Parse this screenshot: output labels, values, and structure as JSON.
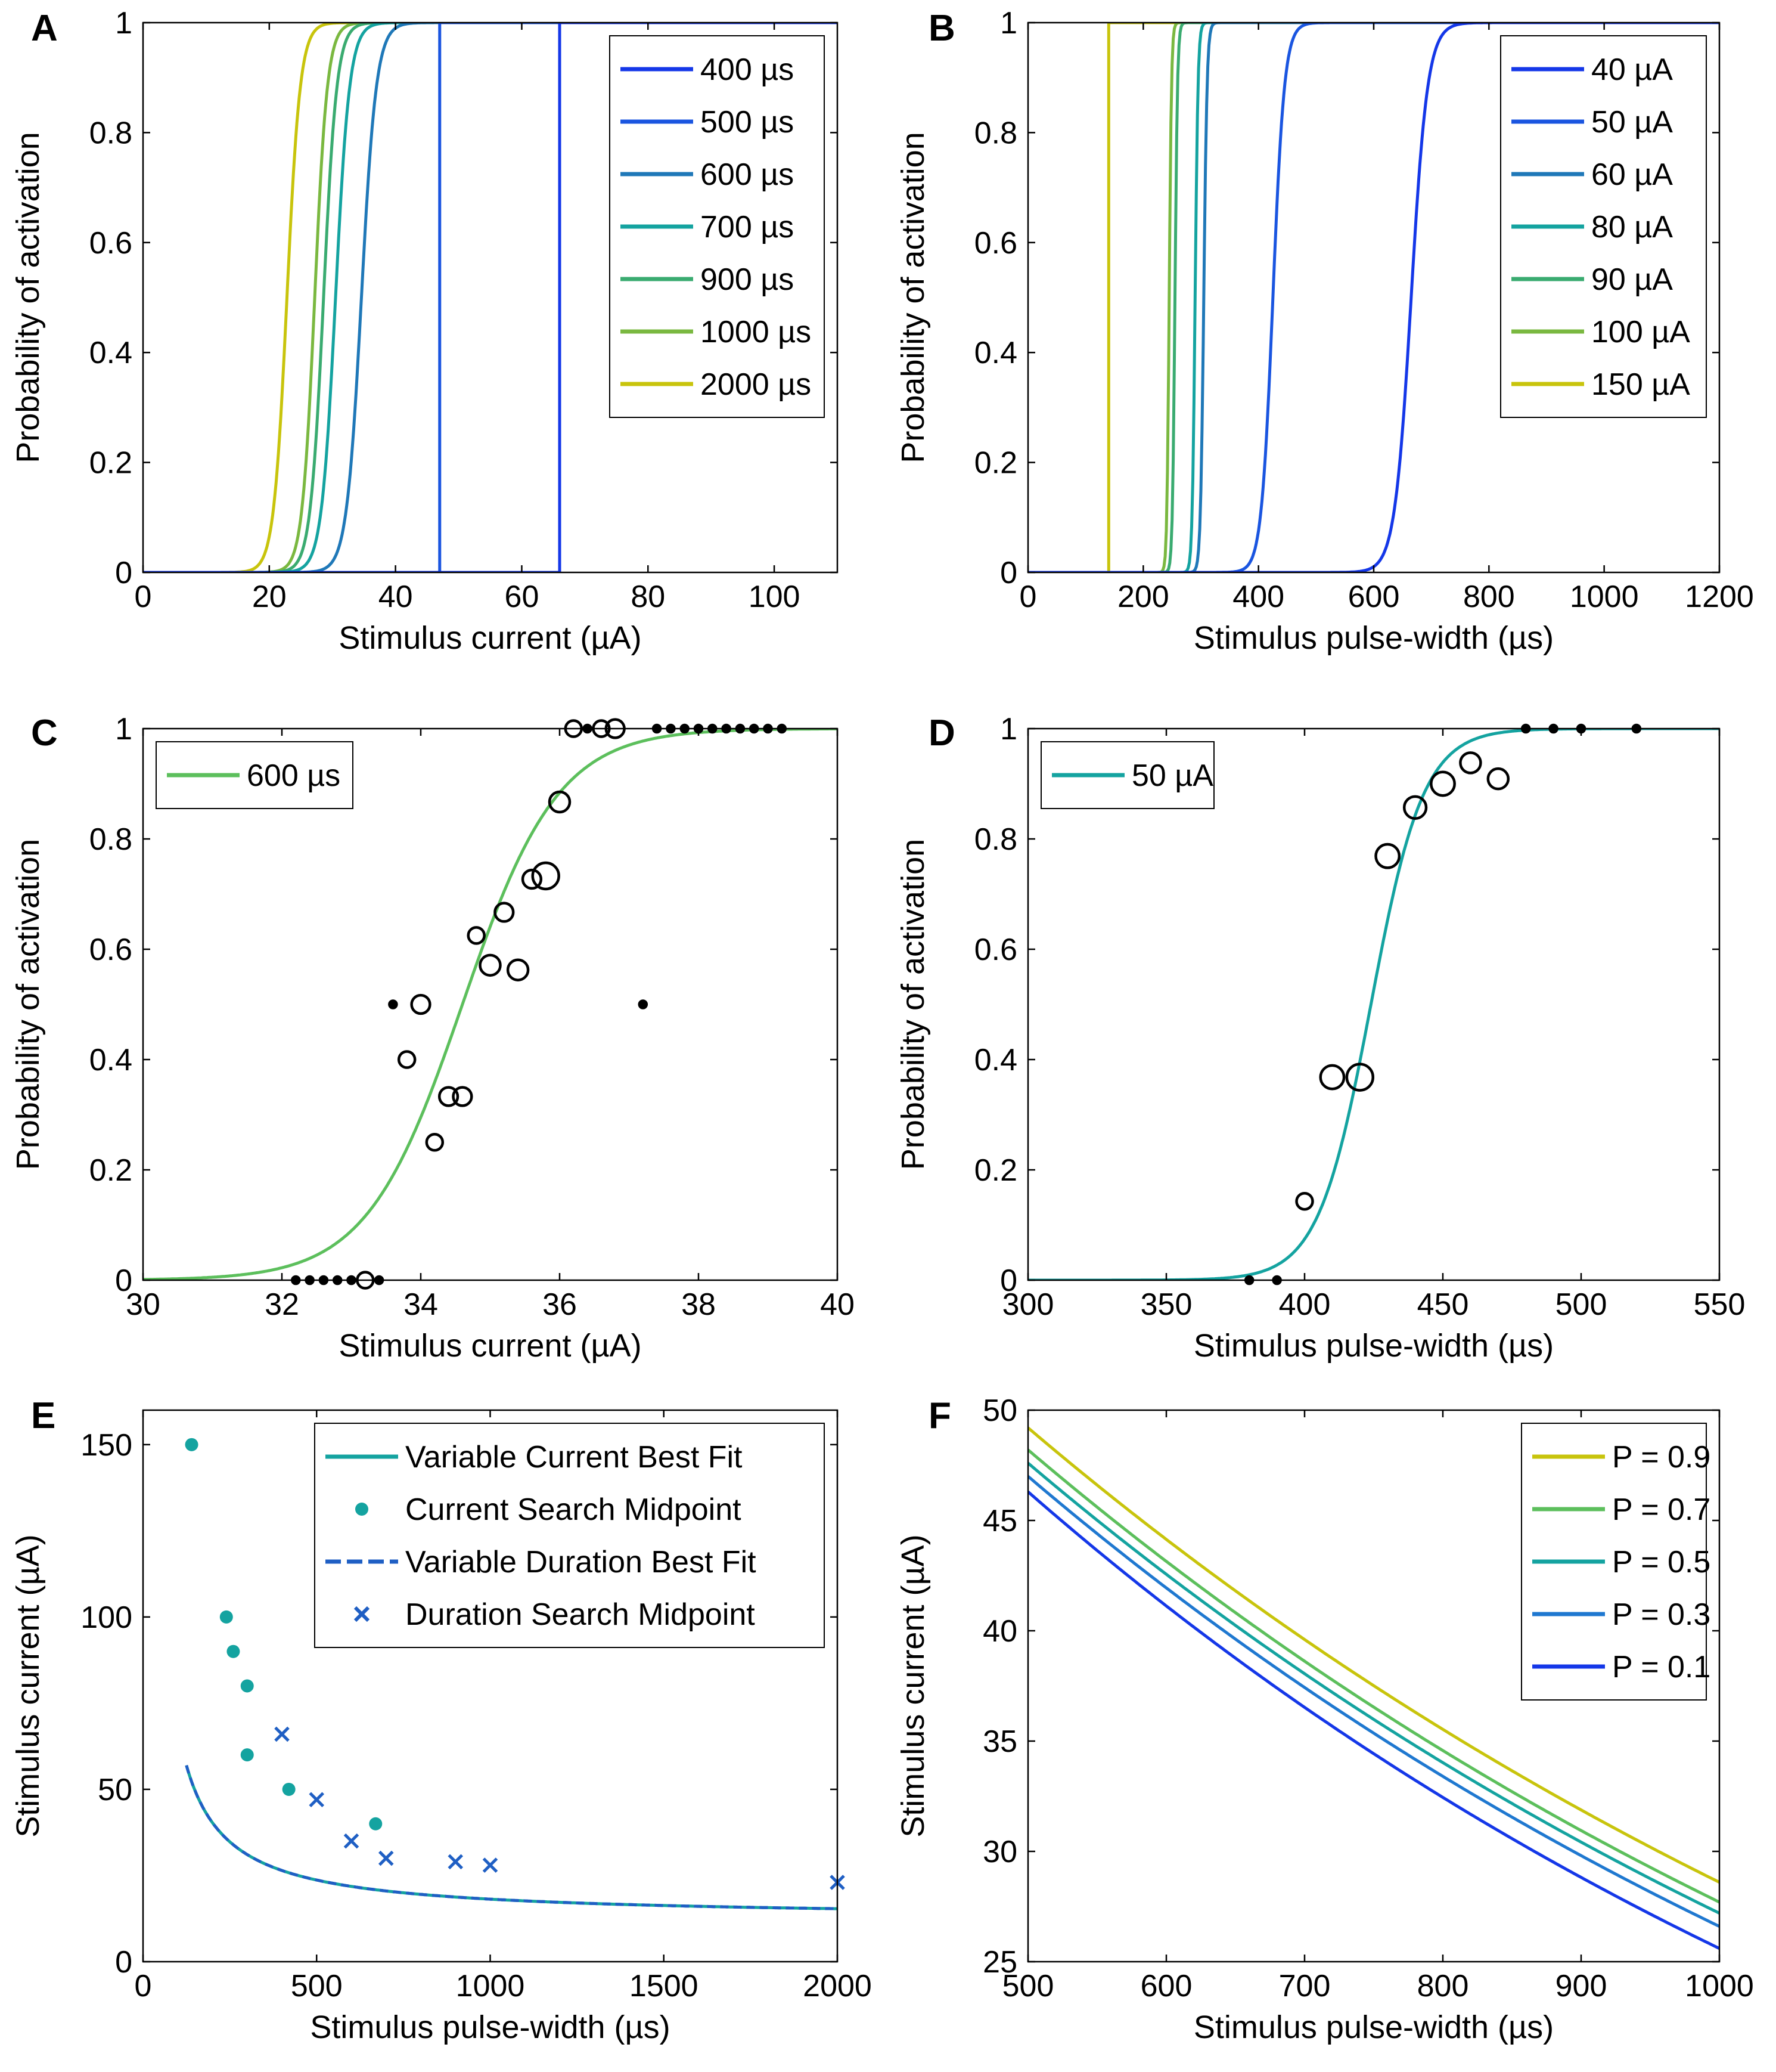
{
  "chart_data": [
    {
      "id": "A",
      "type": "line",
      "panel_label": "A",
      "xlabel": "Stimulus current (µA)",
      "ylabel": "Probability of activation",
      "xlim": [
        0,
        110
      ],
      "ylim": [
        0,
        1
      ],
      "xticks": [
        0,
        20,
        40,
        60,
        80,
        100
      ],
      "yticks": [
        0,
        0.2,
        0.4,
        0.6,
        0.8,
        1
      ],
      "legend_position": "top-right",
      "series": [
        {
          "name": "400 µs",
          "color": "#1437e8",
          "kind": "step",
          "threshold": 66
        },
        {
          "name": "500 µs",
          "color": "#1a55e0",
          "kind": "step",
          "threshold": 47
        },
        {
          "name": "600 µs",
          "color": "#1f78b8",
          "kind": "sigmoid",
          "midpoint": 34.6,
          "slope": 0.85
        },
        {
          "name": "700 µs",
          "color": "#14a3a0",
          "kind": "sigmoid",
          "midpoint": 30.5,
          "slope": 0.9
        },
        {
          "name": "900 µs",
          "color": "#3aab70",
          "kind": "sigmoid",
          "midpoint": 28.6,
          "slope": 0.95
        },
        {
          "name": "1000 µs",
          "color": "#7ab840",
          "kind": "sigmoid",
          "midpoint": 27.2,
          "slope": 1.0
        },
        {
          "name": "2000 µs",
          "color": "#c8c40c",
          "kind": "sigmoid",
          "midpoint": 22.8,
          "slope": 0.95
        }
      ]
    },
    {
      "id": "B",
      "type": "line",
      "panel_label": "B",
      "xlabel": "Stimulus pulse-width (µs)",
      "ylabel": "Probability of activation",
      "xlim": [
        0,
        1200
      ],
      "ylim": [
        0,
        1
      ],
      "xticks": [
        0,
        200,
        400,
        600,
        800,
        1000,
        1200
      ],
      "yticks": [
        0,
        0.2,
        0.4,
        0.6,
        0.8,
        1
      ],
      "legend_position": "top-right",
      "series": [
        {
          "name": "40 µA",
          "color": "#1437e8",
          "kind": "sigmoid",
          "midpoint": 665,
          "slope": 0.07
        },
        {
          "name": "50 µA",
          "color": "#1a55e0",
          "kind": "sigmoid",
          "midpoint": 425,
          "slope": 0.1
        },
        {
          "name": "60 µA",
          "color": "#1f78b8",
          "kind": "sigmoid",
          "midpoint": 305,
          "slope": 0.35
        },
        {
          "name": "80 µA",
          "color": "#14a3a0",
          "kind": "sigmoid",
          "midpoint": 290,
          "slope": 0.4
        },
        {
          "name": "90 µA",
          "color": "#3aab70",
          "kind": "sigmoid",
          "midpoint": 255,
          "slope": 0.45
        },
        {
          "name": "100 µA",
          "color": "#7ab840",
          "kind": "sigmoid",
          "midpoint": 245,
          "slope": 0.5
        },
        {
          "name": "150 µA",
          "color": "#c8c40c",
          "kind": "step",
          "threshold": 140
        }
      ]
    },
    {
      "id": "C",
      "type": "scatter",
      "panel_label": "C",
      "xlabel": "Stimulus current (µA)",
      "ylabel": "Probability of activation",
      "xlim": [
        30,
        40
      ],
      "ylim": [
        0,
        1
      ],
      "xticks": [
        30,
        32,
        34,
        36,
        38,
        40
      ],
      "yticks": [
        0,
        0.2,
        0.4,
        0.6,
        0.8,
        1
      ],
      "legend_position": "top-left",
      "fit": {
        "name": "600 µs",
        "color": "#5cbf5c",
        "midpoint": 34.6,
        "slope": 1.45
      },
      "points": [
        {
          "x": 32.2,
          "y": 0,
          "n": 1
        },
        {
          "x": 32.4,
          "y": 0,
          "n": 1
        },
        {
          "x": 32.6,
          "y": 0,
          "n": 1
        },
        {
          "x": 32.8,
          "y": 0,
          "n": 1
        },
        {
          "x": 33.0,
          "y": 0,
          "n": 1
        },
        {
          "x": 33.2,
          "y": 0,
          "n": 2
        },
        {
          "x": 33.4,
          "y": 0,
          "n": 1
        },
        {
          "x": 33.6,
          "y": 0.5,
          "n": 1
        },
        {
          "x": 33.8,
          "y": 0.4,
          "n": 2
        },
        {
          "x": 34.0,
          "y": 0.5,
          "n": 3
        },
        {
          "x": 34.2,
          "y": 0.25,
          "n": 2
        },
        {
          "x": 34.4,
          "y": 0.333,
          "n": 3
        },
        {
          "x": 34.6,
          "y": 0.333,
          "n": 3
        },
        {
          "x": 34.8,
          "y": 0.625,
          "n": 2
        },
        {
          "x": 35.0,
          "y": 0.571,
          "n": 4
        },
        {
          "x": 35.2,
          "y": 0.667,
          "n": 3
        },
        {
          "x": 35.4,
          "y": 0.5625,
          "n": 4
        },
        {
          "x": 35.6,
          "y": 0.727,
          "n": 3
        },
        {
          "x": 35.8,
          "y": 0.733,
          "n": 8
        },
        {
          "x": 36.0,
          "y": 0.867,
          "n": 4
        },
        {
          "x": 36.2,
          "y": 1,
          "n": 2
        },
        {
          "x": 36.4,
          "y": 1,
          "n": 1
        },
        {
          "x": 36.6,
          "y": 1,
          "n": 2
        },
        {
          "x": 36.8,
          "y": 1,
          "n": 3
        },
        {
          "x": 37.2,
          "y": 0.5,
          "n": 1
        },
        {
          "x": 37.4,
          "y": 1,
          "n": 1
        },
        {
          "x": 37.6,
          "y": 1,
          "n": 1
        },
        {
          "x": 37.8,
          "y": 1,
          "n": 1
        },
        {
          "x": 38.0,
          "y": 1,
          "n": 1
        },
        {
          "x": 38.2,
          "y": 1,
          "n": 1
        },
        {
          "x": 38.4,
          "y": 1,
          "n": 1
        },
        {
          "x": 38.6,
          "y": 1,
          "n": 1
        },
        {
          "x": 38.8,
          "y": 1,
          "n": 1
        },
        {
          "x": 39.0,
          "y": 1,
          "n": 1
        },
        {
          "x": 39.2,
          "y": 1,
          "n": 1
        }
      ]
    },
    {
      "id": "D",
      "type": "scatter",
      "panel_label": "D",
      "xlabel": "Stimulus pulse-width (µs)",
      "ylabel": "Probability of activation",
      "xlim": [
        300,
        550
      ],
      "ylim": [
        0,
        1
      ],
      "xticks": [
        300,
        350,
        400,
        450,
        500,
        550
      ],
      "yticks": [
        0,
        0.2,
        0.4,
        0.6,
        0.8,
        1
      ],
      "legend_position": "top-left",
      "fit": {
        "name": "50 µA",
        "color": "#14a3a0",
        "midpoint": 424,
        "slope": 0.105
      },
      "points": [
        {
          "x": 380,
          "y": 0,
          "n": 1
        },
        {
          "x": 390,
          "y": 0,
          "n": 1
        },
        {
          "x": 400,
          "y": 0.143,
          "n": 2
        },
        {
          "x": 410,
          "y": 0.368,
          "n": 6
        },
        {
          "x": 420,
          "y": 0.368,
          "n": 8
        },
        {
          "x": 430,
          "y": 0.769,
          "n": 6
        },
        {
          "x": 440,
          "y": 0.857,
          "n": 5
        },
        {
          "x": 450,
          "y": 0.9,
          "n": 6
        },
        {
          "x": 460,
          "y": 0.938,
          "n": 4
        },
        {
          "x": 470,
          "y": 0.909,
          "n": 4
        },
        {
          "x": 480,
          "y": 1,
          "n": 1
        },
        {
          "x": 490,
          "y": 1,
          "n": 1
        },
        {
          "x": 500,
          "y": 1,
          "n": 1
        },
        {
          "x": 520,
          "y": 1,
          "n": 1
        }
      ]
    },
    {
      "id": "E",
      "type": "line",
      "panel_label": "E",
      "xlabel": "Stimulus pulse-width (µs)",
      "ylabel": "Stimulus current (µA)",
      "xlim": [
        0,
        2000
      ],
      "ylim": [
        0,
        160
      ],
      "xticks": [
        0,
        500,
        1000,
        1500,
        2000
      ],
      "yticks": [
        0,
        50,
        100,
        150
      ],
      "legend_position": "top-right",
      "series": [
        {
          "name": "Variable Current Best Fit",
          "color": "#14a3a0",
          "style": "solid",
          "rheobase": 12.6,
          "chronaxie": 440
        },
        {
          "name": "Current Search Midpoint",
          "color": "#14a3a0",
          "style": "dot",
          "points": [
            [
              140,
              150
            ],
            [
              240,
              100
            ],
            [
              260,
              90
            ],
            [
              300,
              80
            ],
            [
              300,
              60
            ],
            [
              420,
              50
            ],
            [
              670,
              40
            ]
          ]
        },
        {
          "name": "Variable Duration Best Fit",
          "color": "#1f5fc4",
          "style": "dashed",
          "rheobase": 12.6,
          "chronaxie": 440
        },
        {
          "name": "Duration Search Midpoint",
          "color": "#1f5fc4",
          "style": "x",
          "points": [
            [
              400,
              66
            ],
            [
              500,
              47
            ],
            [
              600,
              35
            ],
            [
              700,
              30
            ],
            [
              900,
              29
            ],
            [
              1000,
              28
            ],
            [
              2000,
              23
            ]
          ]
        }
      ]
    },
    {
      "id": "F",
      "type": "line",
      "panel_label": "F",
      "xlabel": "Stimulus pulse-width (µs)",
      "ylabel": "Stimulus current (µA)",
      "xlim": [
        500,
        1000
      ],
      "ylim": [
        25,
        50
      ],
      "xticks": [
        500,
        600,
        700,
        800,
        900,
        1000
      ],
      "yticks": [
        25,
        30,
        35,
        40,
        45,
        50
      ],
      "legend_position": "top-right",
      "series": [
        {
          "name": "P = 0.9",
          "color": "#c8c40c",
          "start": 49.2,
          "end": 28.6
        },
        {
          "name": "P = 0.7",
          "color": "#5cbf5c",
          "start": 48.2,
          "end": 27.7
        },
        {
          "name": "P = 0.5",
          "color": "#14a3a0",
          "start": 47.6,
          "end": 27.2
        },
        {
          "name": "P = 0.3",
          "color": "#1f78d0",
          "start": 47.0,
          "end": 26.6
        },
        {
          "name": "P = 0.1",
          "color": "#1437e8",
          "start": 46.3,
          "end": 25.6
        }
      ]
    }
  ]
}
